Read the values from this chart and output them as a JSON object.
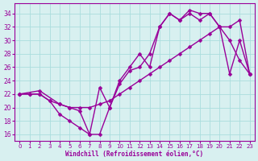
{
  "bg_color": "#d8f0f0",
  "grid_color": "#aadddd",
  "line_color": "#990099",
  "marker": "D",
  "markersize": 2.5,
  "linewidth": 1.0,
  "xlabel": "Windchill (Refroidissement éolien,°C)",
  "xlabel_color": "#990099",
  "tick_color": "#990099",
  "xlim": [
    -0.5,
    23.5
  ],
  "ylim": [
    15,
    35.5
  ],
  "yticks": [
    16,
    18,
    20,
    22,
    24,
    26,
    28,
    30,
    32,
    34
  ],
  "xticks": [
    0,
    1,
    2,
    3,
    4,
    5,
    6,
    7,
    8,
    9,
    10,
    11,
    12,
    13,
    14,
    15,
    16,
    17,
    18,
    19,
    20,
    21,
    22,
    23
  ],
  "lines": [
    {
      "x": [
        0,
        1,
        2,
        3,
        4,
        5,
        6,
        7,
        8,
        9,
        10,
        11,
        12,
        13,
        14,
        15,
        16,
        17,
        18,
        19,
        20,
        21,
        22,
        23
      ],
      "y": [
        22,
        22,
        22,
        21,
        19,
        18,
        17,
        16,
        16,
        20,
        24,
        26,
        28,
        26,
        32,
        34,
        33,
        34.5,
        34,
        34,
        32,
        30,
        27,
        25
      ]
    },
    {
      "x": [
        0,
        2,
        4,
        5,
        6,
        7,
        8,
        9,
        10,
        11,
        12,
        13,
        14,
        15,
        16,
        17,
        18,
        19,
        20,
        21,
        22,
        23
      ],
      "y": [
        22,
        22.5,
        20.5,
        20,
        19.5,
        16,
        23,
        20,
        23.5,
        25.5,
        26,
        28,
        32,
        34,
        33,
        34,
        33,
        34,
        32,
        25,
        30,
        25
      ]
    },
    {
      "x": [
        0,
        1,
        2,
        3,
        4,
        5,
        6,
        7,
        8,
        9,
        10,
        11,
        12,
        13,
        14,
        15,
        16,
        17,
        18,
        19,
        20,
        21,
        22,
        23
      ],
      "y": [
        22,
        22,
        22,
        21,
        20.5,
        20,
        20,
        20,
        20.5,
        21,
        22,
        23,
        24,
        25,
        26,
        27,
        28,
        29,
        30,
        31,
        32,
        32,
        33,
        25
      ]
    }
  ]
}
